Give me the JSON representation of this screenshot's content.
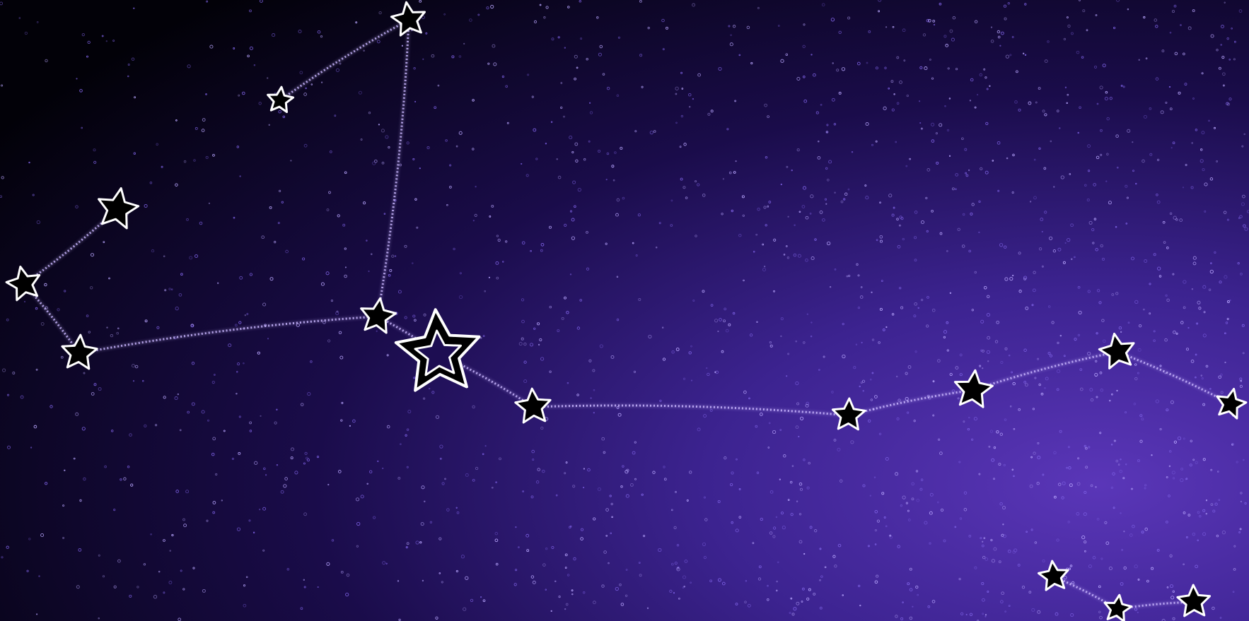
{
  "scene": {
    "subject": "constellation-star-chart",
    "colors": {
      "sky_dark": "#000000",
      "sky_mid": "#1d0d52",
      "sky_light": "#4a2aa6",
      "line_glow": "#c9b6ff",
      "star_outline": "#ffffff",
      "star_fill": "#000000"
    },
    "icons": {
      "star": "star-icon",
      "hollow_star": "hollow-star-icon"
    }
  }
}
